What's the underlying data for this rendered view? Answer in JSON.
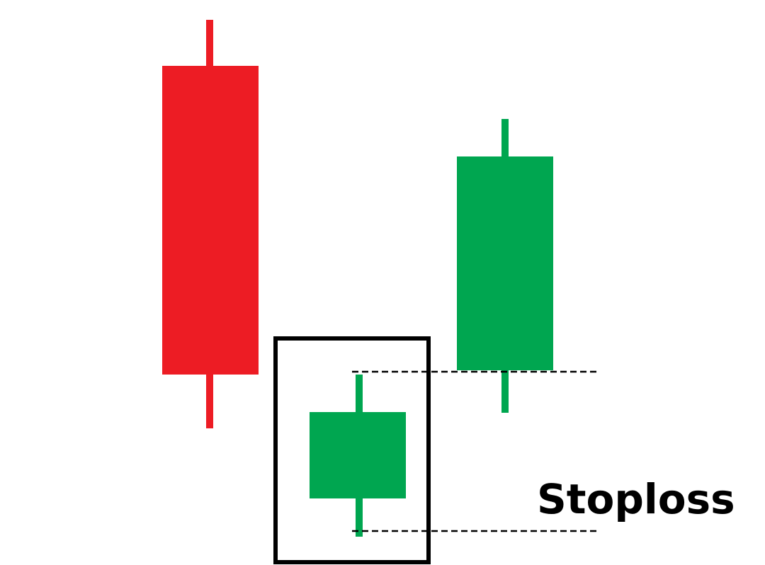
{
  "annotation": {
    "label": "Stoploss"
  },
  "colors": {
    "bearish": "#ed1c24",
    "bullish": "#00a650",
    "outline": "#000000",
    "background": "#ffffff"
  },
  "candles": [
    {
      "direction": "bearish"
    },
    {
      "direction": "bullish"
    },
    {
      "direction": "bullish"
    }
  ]
}
